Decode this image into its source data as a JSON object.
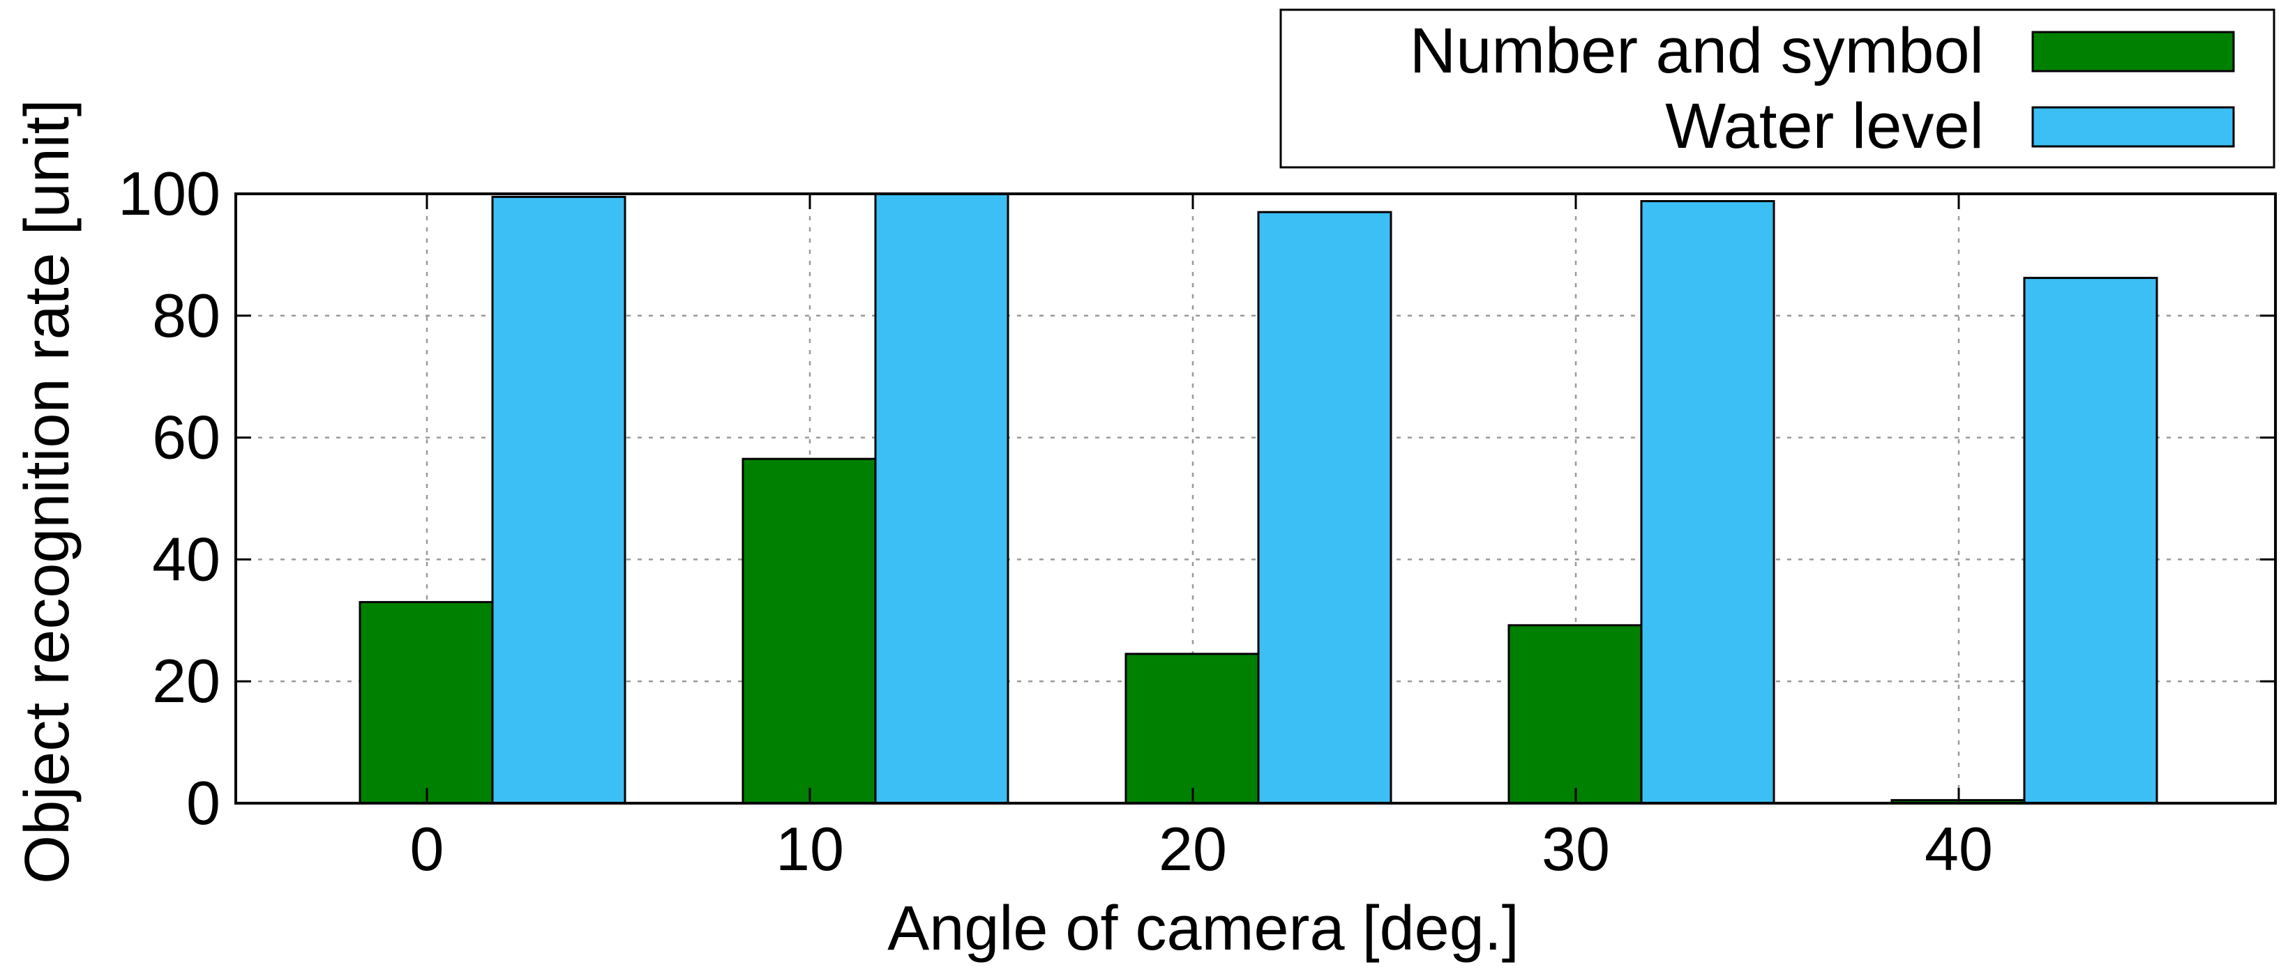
{
  "chart_data": {
    "type": "bar",
    "title": "",
    "xlabel": "Angle of camera [deg.]",
    "ylabel": "Object recognition rate [unit]",
    "categories": [
      "0",
      "10",
      "20",
      "30",
      "40"
    ],
    "ylim": [
      0,
      100
    ],
    "yticks": [
      "0",
      "20",
      "40",
      "60",
      "80",
      "100"
    ],
    "grid": true,
    "legend_position": "top-right",
    "series": [
      {
        "name": "Number and symbol",
        "color": "#008000",
        "values": [
          33,
          56.5,
          24.5,
          29.2,
          0.5
        ]
      },
      {
        "name": "Water level",
        "color": "#3bbff5",
        "values": [
          99.5,
          100,
          97,
          98.8,
          86.2
        ]
      }
    ]
  }
}
